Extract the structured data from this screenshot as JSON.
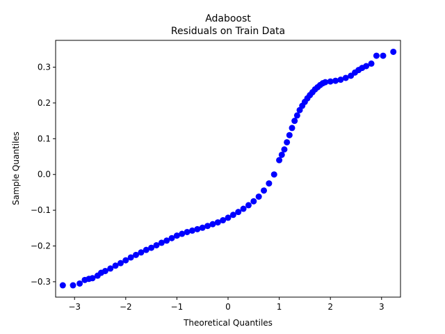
{
  "chart_data": {
    "type": "scatter",
    "title": "Adaboost",
    "subtitle": "Residuals on Train Data",
    "xlabel": "Theoretical Quantiles",
    "ylabel": "Sample Quantiles",
    "xlim": [
      -3.37,
      3.37
    ],
    "ylim": [
      -0.343,
      0.375
    ],
    "x_ticks": [
      -3,
      -2,
      -1,
      0,
      1,
      2,
      3
    ],
    "x_tick_labels": [
      "−3",
      "−2",
      "−1",
      "0",
      "1",
      "2",
      "3"
    ],
    "y_ticks": [
      -0.3,
      -0.2,
      -0.1,
      0.0,
      0.1,
      0.2,
      0.3
    ],
    "y_tick_labels": [
      "−0.3",
      "−0.2",
      "−0.1",
      "0.0",
      "0.1",
      "0.2",
      "0.3"
    ],
    "grid": false,
    "marker_color": "#0000ff",
    "series": [
      {
        "values_x": [
          -3.23,
          -3.03,
          -2.9,
          -2.8,
          -2.72,
          -2.65,
          -2.55,
          -2.48,
          -2.4,
          -2.3,
          -2.2,
          -2.1,
          -2.0,
          -1.9,
          -1.8,
          -1.7,
          -1.6,
          -1.5,
          -1.4,
          -1.3,
          -1.2,
          -1.1,
          -1.0,
          -0.9,
          -0.8,
          -0.7,
          -0.6,
          -0.5,
          -0.4,
          -0.3,
          -0.2,
          -0.1,
          0.0,
          0.1,
          0.2,
          0.3,
          0.4,
          0.5,
          0.6,
          0.7,
          0.8,
          0.9,
          1.0,
          1.05,
          1.1,
          1.15,
          1.2,
          1.25,
          1.3,
          1.35,
          1.4,
          1.45,
          1.5,
          1.55,
          1.6,
          1.65,
          1.7,
          1.75,
          1.8,
          1.85,
          1.9,
          2.0,
          2.1,
          2.2,
          2.3,
          2.4,
          2.48,
          2.55,
          2.62,
          2.7,
          2.8,
          2.9,
          3.03,
          3.23
        ],
        "values_y": [
          -0.31,
          -0.31,
          -0.305,
          -0.295,
          -0.292,
          -0.29,
          -0.283,
          -0.275,
          -0.27,
          -0.263,
          -0.255,
          -0.248,
          -0.24,
          -0.232,
          -0.225,
          -0.218,
          -0.211,
          -0.205,
          -0.198,
          -0.191,
          -0.185,
          -0.178,
          -0.171,
          -0.166,
          -0.161,
          -0.157,
          -0.153,
          -0.149,
          -0.144,
          -0.139,
          -0.134,
          -0.128,
          -0.121,
          -0.113,
          -0.105,
          -0.096,
          -0.086,
          -0.075,
          -0.062,
          -0.045,
          -0.025,
          0.0,
          0.04,
          0.055,
          0.07,
          0.09,
          0.11,
          0.13,
          0.15,
          0.165,
          0.18,
          0.192,
          0.203,
          0.213,
          0.222,
          0.23,
          0.238,
          0.244,
          0.25,
          0.255,
          0.258,
          0.26,
          0.262,
          0.265,
          0.27,
          0.276,
          0.285,
          0.292,
          0.298,
          0.303,
          0.31,
          0.332,
          0.332,
          0.343
        ]
      }
    ]
  }
}
